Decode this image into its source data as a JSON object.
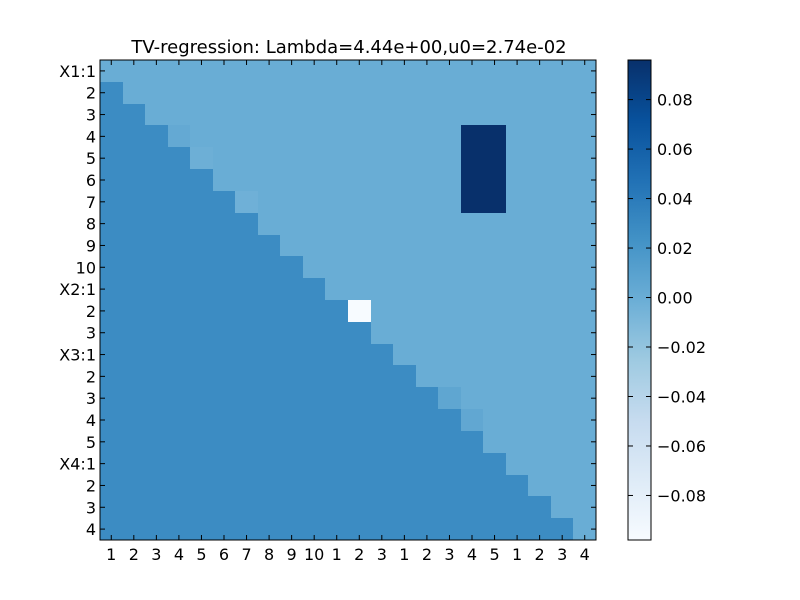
{
  "chart_data": {
    "type": "heatmap",
    "title": "TV-regression: Lambda=4.44e+00,u0=2.74e-02",
    "xlabel": "",
    "ylabel": "",
    "x_tick_labels": [
      "1",
      "2",
      "3",
      "4",
      "5",
      "6",
      "7",
      "8",
      "9",
      "10",
      "1",
      "2",
      "3",
      "1",
      "2",
      "3",
      "4",
      "5",
      "1",
      "2",
      "3",
      "4"
    ],
    "y_tick_labels": [
      "X1:1",
      "2",
      "3",
      "4",
      "5",
      "6",
      "7",
      "8",
      "9",
      "10",
      "X2:1",
      "2",
      "3",
      "X3:1",
      "2",
      "3",
      "4",
      "5",
      "X4:1",
      "2",
      "3",
      "4"
    ],
    "colormap": "Blues",
    "colorbar": {
      "vmin": -0.098,
      "vmax": 0.096,
      "ticks": [
        0.08,
        0.06,
        0.04,
        0.02,
        0.0,
        -0.02,
        -0.04,
        -0.06,
        -0.08
      ],
      "tick_labels": [
        "0.08",
        "0.06",
        "0.04",
        "0.02",
        "0.00",
        "−0.02",
        "−0.04",
        "−0.06",
        "−0.08"
      ]
    },
    "values": [
      [
        0.0,
        0.0,
        0.0,
        0.0,
        0.0,
        0.0,
        0.0,
        0.0,
        0.0,
        0.0,
        0.0,
        0.0,
        0.0,
        0.0,
        0.0,
        0.0,
        0.0,
        0.0,
        0.0,
        0.0,
        0.0,
        0.0
      ],
      [
        0.0274,
        0.0,
        0.0,
        0.0,
        0.0,
        0.0,
        0.0,
        0.0,
        0.0,
        0.0,
        0.0,
        0.0,
        0.0,
        0.0,
        0.0,
        0.0,
        0.0,
        0.0,
        0.0,
        0.0,
        0.0,
        0.0
      ],
      [
        0.0274,
        0.0274,
        0.0,
        0.0,
        0.0,
        0.0,
        0.0,
        0.0,
        0.0,
        0.0,
        0.0,
        0.0,
        0.0,
        0.0,
        0.0,
        0.0,
        0.0,
        0.0,
        0.0,
        0.0,
        0.0,
        0.0
      ],
      [
        0.0274,
        0.0274,
        0.0274,
        0.003,
        0.0,
        0.0,
        0.0,
        0.0,
        0.0,
        0.0,
        0.0,
        0.0,
        0.0,
        0.0,
        0.0,
        0.0,
        0.096,
        0.096,
        0.0,
        0.0,
        0.0,
        0.0
      ],
      [
        0.0274,
        0.0274,
        0.0274,
        0.0274,
        -0.002,
        0.0,
        0.0,
        0.0,
        0.0,
        0.0,
        0.0,
        0.0,
        0.0,
        0.0,
        0.0,
        0.0,
        0.096,
        0.096,
        0.0,
        0.0,
        0.0,
        0.0
      ],
      [
        0.0274,
        0.0274,
        0.0274,
        0.0274,
        0.0274,
        0.0,
        0.0,
        0.0,
        0.0,
        0.0,
        0.0,
        0.0,
        0.0,
        0.0,
        0.0,
        0.0,
        0.096,
        0.096,
        0.0,
        0.0,
        0.0,
        0.0
      ],
      [
        0.0274,
        0.0274,
        0.0274,
        0.0274,
        0.0274,
        0.0274,
        -0.003,
        0.0,
        0.0,
        0.0,
        0.0,
        0.0,
        0.0,
        0.0,
        0.0,
        0.0,
        0.096,
        0.096,
        0.0,
        0.0,
        0.0,
        0.0
      ],
      [
        0.0274,
        0.0274,
        0.0274,
        0.0274,
        0.0274,
        0.0274,
        0.0274,
        0.0,
        0.0,
        0.0,
        0.0,
        0.0,
        0.0,
        0.0,
        0.0,
        0.0,
        0.0,
        0.0,
        0.0,
        0.0,
        0.0,
        0.0
      ],
      [
        0.0274,
        0.0274,
        0.0274,
        0.0274,
        0.0274,
        0.0274,
        0.0274,
        0.0274,
        0.0,
        0.0,
        0.0,
        0.0,
        0.0,
        0.0,
        0.0,
        0.0,
        0.0,
        0.0,
        0.0,
        0.0,
        0.0,
        0.0
      ],
      [
        0.0274,
        0.0274,
        0.0274,
        0.0274,
        0.0274,
        0.0274,
        0.0274,
        0.0274,
        0.0274,
        0.0,
        0.0,
        0.0,
        0.0,
        0.0,
        0.0,
        0.0,
        0.0,
        0.0,
        0.0,
        0.0,
        0.0,
        0.0
      ],
      [
        0.0274,
        0.0274,
        0.0274,
        0.0274,
        0.0274,
        0.0274,
        0.0274,
        0.0274,
        0.0274,
        0.0274,
        0.0,
        0.0,
        0.0,
        0.0,
        0.0,
        0.0,
        0.0,
        0.0,
        0.0,
        0.0,
        0.0,
        0.0
      ],
      [
        0.0274,
        0.0274,
        0.0274,
        0.0274,
        0.0274,
        0.0274,
        0.0274,
        0.0274,
        0.0274,
        0.0274,
        0.0274,
        -0.098,
        0.0,
        0.0,
        0.0,
        0.0,
        0.0,
        0.0,
        0.0,
        0.0,
        0.0,
        0.0
      ],
      [
        0.0274,
        0.0274,
        0.0274,
        0.0274,
        0.0274,
        0.0274,
        0.0274,
        0.0274,
        0.0274,
        0.0274,
        0.0274,
        0.0274,
        0.0,
        0.0,
        0.0,
        0.0,
        0.0,
        0.0,
        0.0,
        0.0,
        0.0,
        0.0
      ],
      [
        0.0274,
        0.0274,
        0.0274,
        0.0274,
        0.0274,
        0.0274,
        0.0274,
        0.0274,
        0.0274,
        0.0274,
        0.0274,
        0.0274,
        0.0274,
        0.0,
        0.0,
        0.0,
        0.0,
        0.0,
        0.0,
        0.0,
        0.0,
        0.0
      ],
      [
        0.0274,
        0.0274,
        0.0274,
        0.0274,
        0.0274,
        0.0274,
        0.0274,
        0.0274,
        0.0274,
        0.0274,
        0.0274,
        0.0274,
        0.0274,
        0.0274,
        0.0,
        0.0,
        0.0,
        0.0,
        0.0,
        0.0,
        0.0,
        0.0
      ],
      [
        0.0274,
        0.0274,
        0.0274,
        0.0274,
        0.0274,
        0.0274,
        0.0274,
        0.0274,
        0.0274,
        0.0274,
        0.0274,
        0.0274,
        0.0274,
        0.0274,
        0.0274,
        0.006,
        0.0,
        0.0,
        0.0,
        0.0,
        0.0,
        0.0
      ],
      [
        0.0274,
        0.0274,
        0.0274,
        0.0274,
        0.0274,
        0.0274,
        0.0274,
        0.0274,
        0.0274,
        0.0274,
        0.0274,
        0.0274,
        0.0274,
        0.0274,
        0.0274,
        0.0274,
        0.005,
        0.0,
        0.0,
        0.0,
        0.0,
        0.0
      ],
      [
        0.0274,
        0.0274,
        0.0274,
        0.0274,
        0.0274,
        0.0274,
        0.0274,
        0.0274,
        0.0274,
        0.0274,
        0.0274,
        0.0274,
        0.0274,
        0.0274,
        0.0274,
        0.0274,
        0.0274,
        0.0,
        0.0,
        0.0,
        0.0,
        0.0
      ],
      [
        0.0274,
        0.0274,
        0.0274,
        0.0274,
        0.0274,
        0.0274,
        0.0274,
        0.0274,
        0.0274,
        0.0274,
        0.0274,
        0.0274,
        0.0274,
        0.0274,
        0.0274,
        0.0274,
        0.0274,
        0.0274,
        0.0,
        0.0,
        0.0,
        0.0
      ],
      [
        0.0274,
        0.0274,
        0.0274,
        0.0274,
        0.0274,
        0.0274,
        0.0274,
        0.0274,
        0.0274,
        0.0274,
        0.0274,
        0.0274,
        0.0274,
        0.0274,
        0.0274,
        0.0274,
        0.0274,
        0.0274,
        0.0274,
        0.0,
        0.0,
        0.0
      ],
      [
        0.0274,
        0.0274,
        0.0274,
        0.0274,
        0.0274,
        0.0274,
        0.0274,
        0.0274,
        0.0274,
        0.0274,
        0.0274,
        0.0274,
        0.0274,
        0.0274,
        0.0274,
        0.0274,
        0.0274,
        0.0274,
        0.0274,
        0.0274,
        0.0,
        0.0
      ],
      [
        0.0274,
        0.0274,
        0.0274,
        0.0274,
        0.0274,
        0.0274,
        0.0274,
        0.0274,
        0.0274,
        0.0274,
        0.0274,
        0.0274,
        0.0274,
        0.0274,
        0.0274,
        0.0274,
        0.0274,
        0.0274,
        0.0274,
        0.0274,
        0.0274,
        0.0
      ]
    ],
    "grid": false,
    "legend": "colorbar-right"
  }
}
